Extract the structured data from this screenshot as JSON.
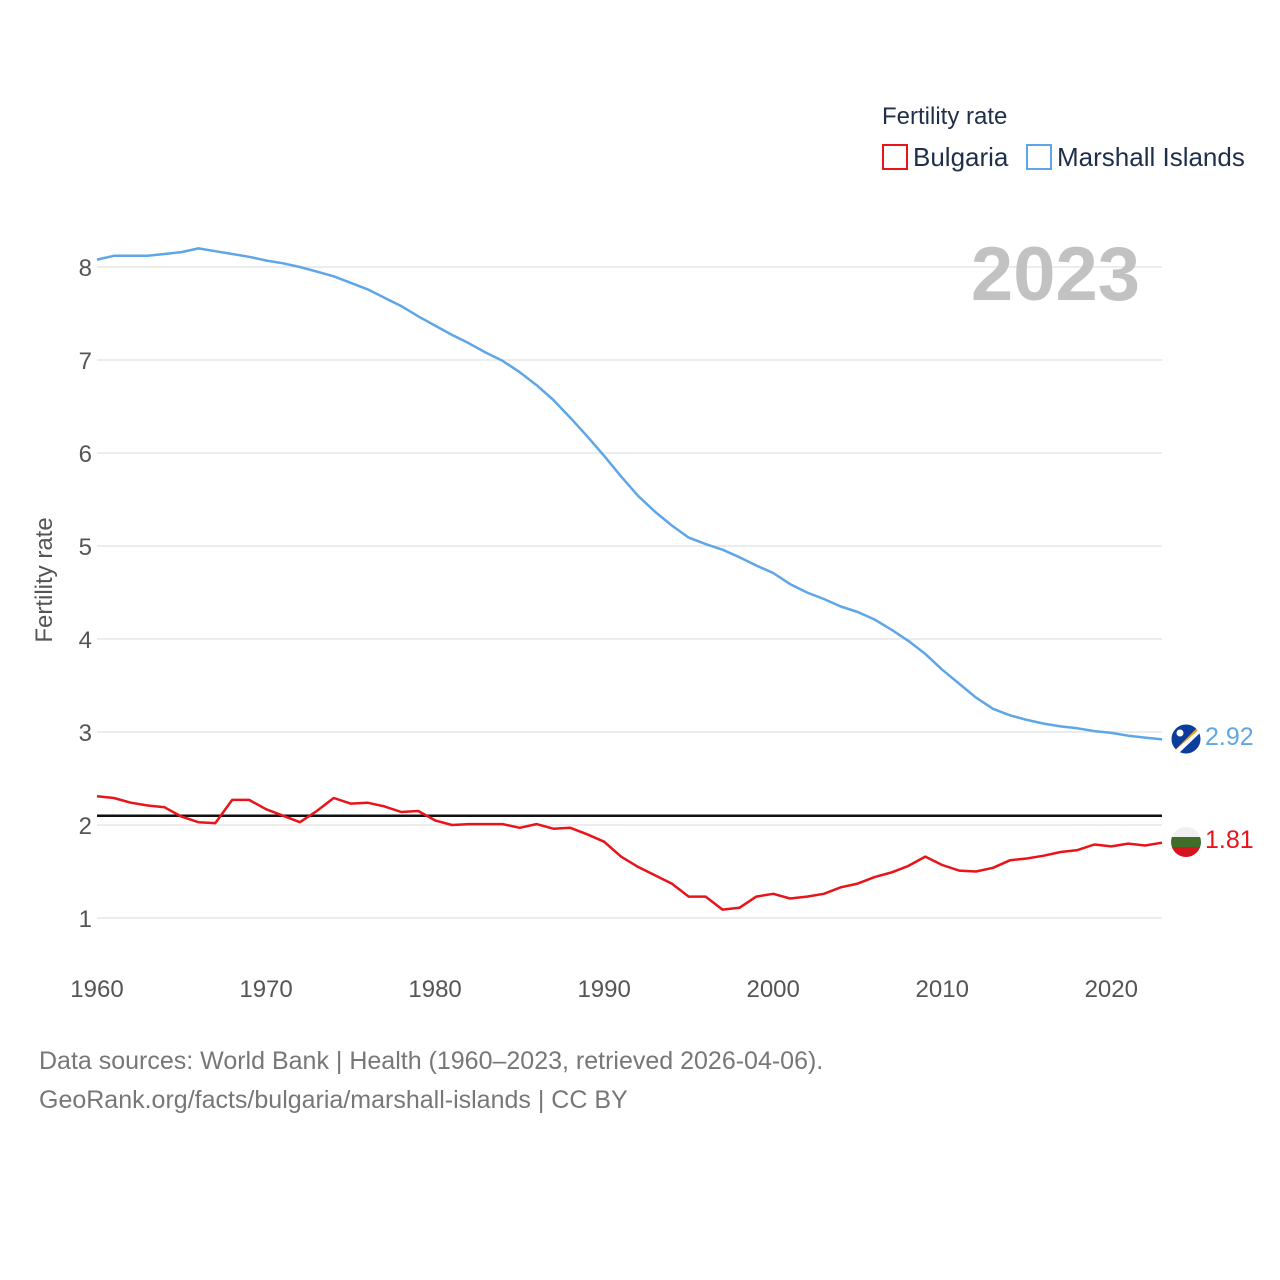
{
  "colors": {
    "bulgaria": "#e8141a",
    "marshall_islands": "#5fa6e6",
    "reference": "#111111",
    "grid": "#e6e6e6",
    "year": "#c2c2c2"
  },
  "icons": {
    "bulgaria_flag": "bulgaria-flag-icon",
    "marshall_flag": "marshall-islands-flag-icon"
  },
  "chart_data": {
    "type": "line",
    "title": "",
    "xlabel": "",
    "ylabel": "Fertility rate",
    "year_label": "2023",
    "xlim": [
      1960,
      2023
    ],
    "ylim": [
      0.3,
      8.6
    ],
    "grid": true,
    "legend": {
      "title": "Fertility rate",
      "placement": "top-right",
      "items": [
        "Bulgaria",
        "Marshall Islands"
      ]
    },
    "x_ticks": [
      1960,
      1970,
      1980,
      1990,
      2000,
      2010,
      2020
    ],
    "y_ticks": [
      1,
      2,
      3,
      4,
      5,
      6,
      7,
      8
    ],
    "reference_line": 2.1,
    "x": [
      1960,
      1961,
      1962,
      1963,
      1964,
      1965,
      1966,
      1967,
      1968,
      1969,
      1970,
      1971,
      1972,
      1973,
      1974,
      1975,
      1976,
      1977,
      1978,
      1979,
      1980,
      1981,
      1982,
      1983,
      1984,
      1985,
      1986,
      1987,
      1988,
      1989,
      1990,
      1991,
      1992,
      1993,
      1994,
      1995,
      1996,
      1997,
      1998,
      1999,
      2000,
      2001,
      2002,
      2003,
      2004,
      2005,
      2006,
      2007,
      2008,
      2009,
      2010,
      2011,
      2012,
      2013,
      2014,
      2015,
      2016,
      2017,
      2018,
      2019,
      2020,
      2021,
      2022,
      2023
    ],
    "series": [
      {
        "name": "Bulgaria",
        "end_value": "1.81",
        "values": [
          2.31,
          2.29,
          2.24,
          2.21,
          2.19,
          2.09,
          2.03,
          2.02,
          2.27,
          2.27,
          2.17,
          2.1,
          2.03,
          2.15,
          2.29,
          2.23,
          2.24,
          2.2,
          2.14,
          2.15,
          2.05,
          2.0,
          2.01,
          2.01,
          2.01,
          1.97,
          2.01,
          1.96,
          1.97,
          1.9,
          1.82,
          1.66,
          1.55,
          1.46,
          1.37,
          1.23,
          1.23,
          1.09,
          1.11,
          1.23,
          1.26,
          1.21,
          1.23,
          1.26,
          1.33,
          1.37,
          1.44,
          1.49,
          1.56,
          1.66,
          1.57,
          1.51,
          1.5,
          1.54,
          1.62,
          1.64,
          1.67,
          1.71,
          1.73,
          1.79,
          1.77,
          1.8,
          1.78,
          1.81
        ]
      },
      {
        "name": "Marshall Islands",
        "end_value": "2.92",
        "values": [
          8.08,
          8.12,
          8.12,
          8.12,
          8.14,
          8.16,
          8.2,
          8.17,
          8.14,
          8.11,
          8.07,
          8.04,
          8.0,
          7.95,
          7.9,
          7.83,
          7.76,
          7.67,
          7.58,
          7.47,
          7.37,
          7.27,
          7.18,
          7.08,
          6.99,
          6.87,
          6.73,
          6.57,
          6.38,
          6.18,
          5.97,
          5.75,
          5.54,
          5.37,
          5.22,
          5.09,
          5.02,
          4.96,
          4.88,
          4.79,
          4.71,
          4.59,
          4.5,
          4.43,
          4.35,
          4.29,
          4.21,
          4.1,
          3.98,
          3.84,
          3.67,
          3.52,
          3.37,
          3.25,
          3.18,
          3.13,
          3.09,
          3.06,
          3.04,
          3.01,
          2.99,
          2.96,
          2.94,
          2.92
        ]
      }
    ]
  },
  "footer": {
    "line1": "Data sources: World Bank | Health (1960–2023, retrieved 2026-04-06).",
    "line2": "GeoRank.org/facts/bulgaria/marshall-islands | CC BY"
  }
}
